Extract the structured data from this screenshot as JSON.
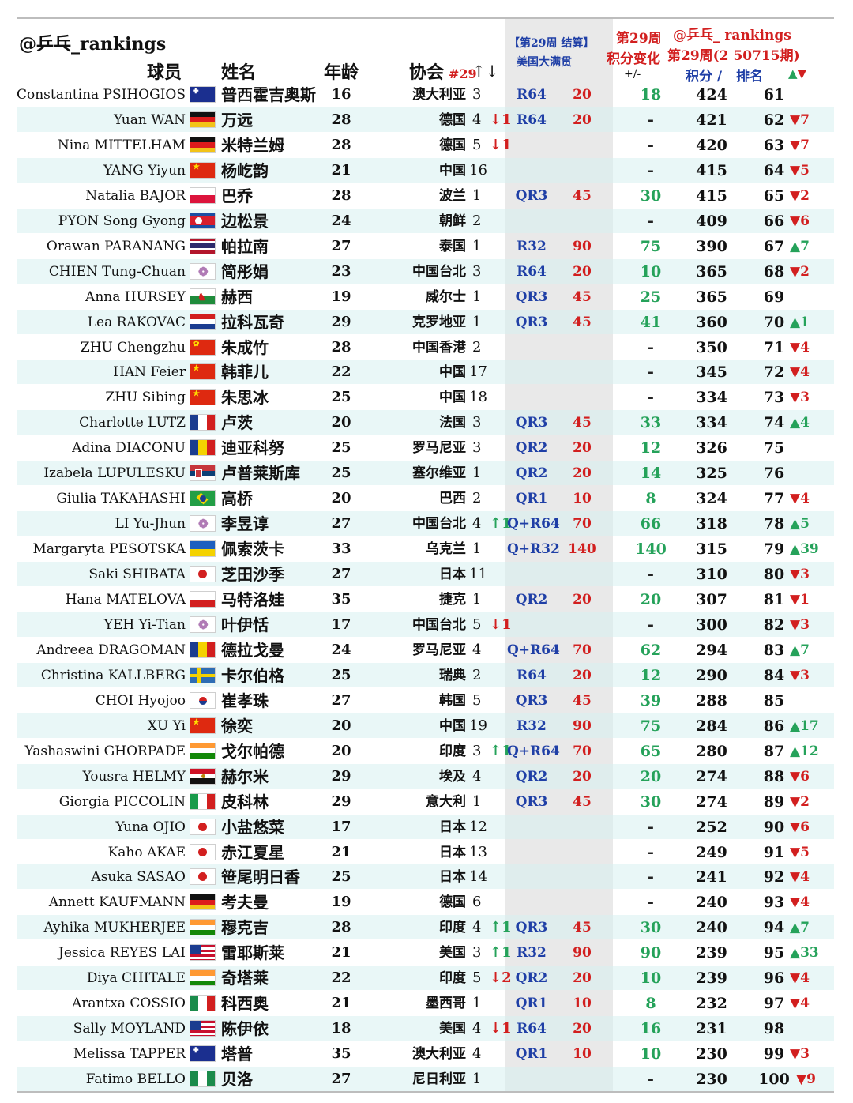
{
  "header": {
    "handle": "@乒乓_rankings",
    "col_player": "球员",
    "col_name": "姓名",
    "col_age": "年龄",
    "col_assoc": "协会",
    "col_assoc_sub": "#29",
    "col_assoc_sort": "↑↓",
    "event_line1": "【第29周 结算】",
    "event_line2": "美国大满贯",
    "week_change_line1": "第29周",
    "week_change_line2": "积分变化",
    "week_change_line3": "+/-",
    "handle2": "@乒乓_ rankings",
    "week_label": "第29周(2 50715期)",
    "col_points": "积分 /",
    "col_rank": "排名",
    "col_move": "▲▼"
  },
  "rows": [
    {
      "en": "Constantina PSIHOGIOS",
      "flag": "AUS",
      "cn": "普西霍吉奥斯",
      "age": "16",
      "assoc": "澳大利亚",
      "nrank": "3",
      "narrow": "",
      "nmove": "",
      "round": "R64",
      "rpts": "20",
      "chg": "18",
      "pts": "424",
      "rank": "61",
      "mv": ""
    },
    {
      "en": "Yuan WAN",
      "flag": "GER",
      "cn": "万远",
      "age": "28",
      "assoc": "德国",
      "nrank": "4",
      "narrow": "↓",
      "nmove": "1",
      "round": "R64",
      "rpts": "20",
      "chg": "-",
      "pts": "421",
      "rank": "62",
      "mv": "▼7"
    },
    {
      "en": "Nina MITTELHAM",
      "flag": "GER",
      "cn": "米特兰姆",
      "age": "28",
      "assoc": "德国",
      "nrank": "5",
      "narrow": "↓",
      "nmove": "1",
      "round": "",
      "rpts": "",
      "chg": "-",
      "pts": "420",
      "rank": "63",
      "mv": "▼7"
    },
    {
      "en": "YANG Yiyun",
      "flag": "CHN",
      "cn": "杨屹韵",
      "age": "21",
      "assoc": "中国",
      "nrank": "16",
      "narrow": "",
      "nmove": "",
      "round": "",
      "rpts": "",
      "chg": "-",
      "pts": "415",
      "rank": "64",
      "mv": "▼5"
    },
    {
      "en": "Natalia BAJOR",
      "flag": "POL",
      "cn": "巴乔",
      "age": "28",
      "assoc": "波兰",
      "nrank": "1",
      "narrow": "",
      "nmove": "",
      "round": "QR3",
      "rpts": "45",
      "chg": "30",
      "pts": "415",
      "rank": "65",
      "mv": "▼2"
    },
    {
      "en": "PYON Song Gyong",
      "flag": "PRK",
      "cn": "边松景",
      "age": "24",
      "assoc": "朝鲜",
      "nrank": "2",
      "narrow": "",
      "nmove": "",
      "round": "",
      "rpts": "",
      "chg": "-",
      "pts": "409",
      "rank": "66",
      "mv": "▼6"
    },
    {
      "en": "Orawan PARANANG",
      "flag": "THA",
      "cn": "帕拉南",
      "age": "27",
      "assoc": "泰国",
      "nrank": "1",
      "narrow": "",
      "nmove": "",
      "round": "R32",
      "rpts": "90",
      "chg": "75",
      "pts": "390",
      "rank": "67",
      "mv": "▲7"
    },
    {
      "en": "CHIEN Tung-Chuan",
      "flag": "TPE",
      "cn": "简彤娟",
      "age": "23",
      "assoc": "中国台北",
      "nrank": "3",
      "narrow": "",
      "nmove": "",
      "round": "R64",
      "rpts": "20",
      "chg": "10",
      "pts": "365",
      "rank": "68",
      "mv": "▼2"
    },
    {
      "en": "Anna HURSEY",
      "flag": "WAL",
      "cn": "赫西",
      "age": "19",
      "assoc": "威尔士",
      "nrank": "1",
      "narrow": "",
      "nmove": "",
      "round": "QR3",
      "rpts": "45",
      "chg": "25",
      "pts": "365",
      "rank": "69",
      "mv": ""
    },
    {
      "en": "Lea RAKOVAC",
      "flag": "CRO",
      "cn": "拉科瓦奇",
      "age": "29",
      "assoc": "克罗地亚",
      "nrank": "1",
      "narrow": "",
      "nmove": "",
      "round": "QR3",
      "rpts": "45",
      "chg": "41",
      "pts": "360",
      "rank": "70",
      "mv": "▲1"
    },
    {
      "en": "ZHU Chengzhu",
      "flag": "HKG",
      "cn": "朱成竹",
      "age": "28",
      "assoc": "中国香港",
      "nrank": "2",
      "narrow": "",
      "nmove": "",
      "round": "",
      "rpts": "",
      "chg": "-",
      "pts": "350",
      "rank": "71",
      "mv": "▼4"
    },
    {
      "en": "HAN Feier",
      "flag": "CHN",
      "cn": "韩菲儿",
      "age": "22",
      "assoc": "中国",
      "nrank": "17",
      "narrow": "",
      "nmove": "",
      "round": "",
      "rpts": "",
      "chg": "-",
      "pts": "345",
      "rank": "72",
      "mv": "▼4"
    },
    {
      "en": "ZHU Sibing",
      "flag": "CHN",
      "cn": "朱思冰",
      "age": "25",
      "assoc": "中国",
      "nrank": "18",
      "narrow": "",
      "nmove": "",
      "round": "",
      "rpts": "",
      "chg": "-",
      "pts": "334",
      "rank": "73",
      "mv": "▼3"
    },
    {
      "en": "Charlotte LUTZ",
      "flag": "FRA",
      "cn": "卢茨",
      "age": "20",
      "assoc": "法国",
      "nrank": "3",
      "narrow": "",
      "nmove": "",
      "round": "QR3",
      "rpts": "45",
      "chg": "33",
      "pts": "334",
      "rank": "74",
      "mv": "▲4"
    },
    {
      "en": "Adina DIACONU",
      "flag": "ROU",
      "cn": "迪亚科努",
      "age": "25",
      "assoc": "罗马尼亚",
      "nrank": "3",
      "narrow": "",
      "nmove": "",
      "round": "QR2",
      "rpts": "20",
      "chg": "12",
      "pts": "326",
      "rank": "75",
      "mv": ""
    },
    {
      "en": "Izabela LUPULESKU",
      "flag": "SRB",
      "cn": "卢普莱斯库",
      "age": "25",
      "assoc": "塞尔维亚",
      "nrank": "1",
      "narrow": "",
      "nmove": "",
      "round": "QR2",
      "rpts": "20",
      "chg": "14",
      "pts": "325",
      "rank": "76",
      "mv": ""
    },
    {
      "en": "Giulia TAKAHASHI",
      "flag": "BRA",
      "cn": "高桥",
      "age": "20",
      "assoc": "巴西",
      "nrank": "2",
      "narrow": "",
      "nmove": "",
      "round": "QR1",
      "rpts": "10",
      "chg": "8",
      "pts": "324",
      "rank": "77",
      "mv": "▼4"
    },
    {
      "en": "LI Yu-Jhun",
      "flag": "TPE",
      "cn": "李昱谆",
      "age": "27",
      "assoc": "中国台北",
      "nrank": "4",
      "narrow": "↑",
      "nmove": "1",
      "round": "Q+R64",
      "rpts": "70",
      "chg": "66",
      "pts": "318",
      "rank": "78",
      "mv": "▲5"
    },
    {
      "en": "Margaryta PESOTSKA",
      "flag": "UKR",
      "cn": "佩索茨卡",
      "age": "33",
      "assoc": "乌克兰",
      "nrank": "1",
      "narrow": "",
      "nmove": "",
      "round": "Q+R32",
      "rpts": "140",
      "chg": "140",
      "pts": "315",
      "rank": "79",
      "mv": "▲39"
    },
    {
      "en": "Saki SHIBATA",
      "flag": "JPN",
      "cn": "芝田沙季",
      "age": "27",
      "assoc": "日本",
      "nrank": "11",
      "narrow": "",
      "nmove": "",
      "round": "",
      "rpts": "",
      "chg": "-",
      "pts": "310",
      "rank": "80",
      "mv": "▼3"
    },
    {
      "en": "Hana MATELOVA",
      "flag": "CZE",
      "cn": "马特洛娃",
      "age": "35",
      "assoc": "捷克",
      "nrank": "1",
      "narrow": "",
      "nmove": "",
      "round": "QR2",
      "rpts": "20",
      "chg": "20",
      "pts": "307",
      "rank": "81",
      "mv": "▼1"
    },
    {
      "en": "YEH Yi-Tian",
      "flag": "TPE",
      "cn": "叶伊恬",
      "age": "17",
      "assoc": "中国台北",
      "nrank": "5",
      "narrow": "↓",
      "nmove": "1",
      "round": "",
      "rpts": "",
      "chg": "-",
      "pts": "300",
      "rank": "82",
      "mv": "▼3"
    },
    {
      "en": "Andreea DRAGOMAN",
      "flag": "ROU",
      "cn": "德拉戈曼",
      "age": "24",
      "assoc": "罗马尼亚",
      "nrank": "4",
      "narrow": "",
      "nmove": "",
      "round": "Q+R64",
      "rpts": "70",
      "chg": "62",
      "pts": "294",
      "rank": "83",
      "mv": "▲7"
    },
    {
      "en": "Christina KALLBERG",
      "flag": "SWE",
      "cn": "卡尔伯格",
      "age": "25",
      "assoc": "瑞典",
      "nrank": "2",
      "narrow": "",
      "nmove": "",
      "round": "R64",
      "rpts": "20",
      "chg": "12",
      "pts": "290",
      "rank": "84",
      "mv": "▼3"
    },
    {
      "en": "CHOI Hyojoo",
      "flag": "KOR",
      "cn": "崔孝珠",
      "age": "27",
      "assoc": "韩国",
      "nrank": "5",
      "narrow": "",
      "nmove": "",
      "round": "QR3",
      "rpts": "45",
      "chg": "39",
      "pts": "288",
      "rank": "85",
      "mv": ""
    },
    {
      "en": "XU Yi",
      "flag": "CHN",
      "cn": "徐奕",
      "age": "20",
      "assoc": "中国",
      "nrank": "19",
      "narrow": "",
      "nmove": "",
      "round": "R32",
      "rpts": "90",
      "chg": "75",
      "pts": "284",
      "rank": "86",
      "mv": "▲17"
    },
    {
      "en": "Yashaswini GHORPADE",
      "flag": "IND",
      "cn": "戈尔帕德",
      "age": "20",
      "assoc": "印度",
      "nrank": "3",
      "narrow": "↑",
      "nmove": "1",
      "round": "Q+R64",
      "rpts": "70",
      "chg": "65",
      "pts": "280",
      "rank": "87",
      "mv": "▲12"
    },
    {
      "en": "Yousra HELMY",
      "flag": "EGY",
      "cn": "赫尔米",
      "age": "29",
      "assoc": "埃及",
      "nrank": "4",
      "narrow": "",
      "nmove": "",
      "round": "QR2",
      "rpts": "20",
      "chg": "20",
      "pts": "274",
      "rank": "88",
      "mv": "▼6"
    },
    {
      "en": "Giorgia PICCOLIN",
      "flag": "ITA",
      "cn": "皮科林",
      "age": "29",
      "assoc": "意大利",
      "nrank": "1",
      "narrow": "",
      "nmove": "",
      "round": "QR3",
      "rpts": "45",
      "chg": "30",
      "pts": "274",
      "rank": "89",
      "mv": "▼2"
    },
    {
      "en": "Yuna OJIO",
      "flag": "JPN",
      "cn": "小盐悠菜",
      "age": "17",
      "assoc": "日本",
      "nrank": "12",
      "narrow": "",
      "nmove": "",
      "round": "",
      "rpts": "",
      "chg": "-",
      "pts": "252",
      "rank": "90",
      "mv": "▼6"
    },
    {
      "en": "Kaho AKAE",
      "flag": "JPN",
      "cn": "赤江夏星",
      "age": "21",
      "assoc": "日本",
      "nrank": "13",
      "narrow": "",
      "nmove": "",
      "round": "",
      "rpts": "",
      "chg": "-",
      "pts": "249",
      "rank": "91",
      "mv": "▼5"
    },
    {
      "en": "Asuka SASAO",
      "flag": "JPN",
      "cn": "笹尾明日香",
      "age": "25",
      "assoc": "日本",
      "nrank": "14",
      "narrow": "",
      "nmove": "",
      "round": "",
      "rpts": "",
      "chg": "-",
      "pts": "241",
      "rank": "92",
      "mv": "▼4"
    },
    {
      "en": "Annett KAUFMANN",
      "flag": "GER",
      "cn": "考夫曼",
      "age": "19",
      "assoc": "德国",
      "nrank": "6",
      "narrow": "",
      "nmove": "",
      "round": "",
      "rpts": "",
      "chg": "-",
      "pts": "240",
      "rank": "93",
      "mv": "▼4"
    },
    {
      "en": "Ayhika MUKHERJEE",
      "flag": "IND",
      "cn": "穆克吉",
      "age": "28",
      "assoc": "印度",
      "nrank": "4",
      "narrow": "↑",
      "nmove": "1",
      "round": "QR3",
      "rpts": "45",
      "chg": "30",
      "pts": "240",
      "rank": "94",
      "mv": "▲7"
    },
    {
      "en": "Jessica REYES LAI",
      "flag": "USA",
      "cn": "雷耶斯莱",
      "age": "21",
      "assoc": "美国",
      "nrank": "3",
      "narrow": "↑",
      "nmove": "1",
      "round": "R32",
      "rpts": "90",
      "chg": "90",
      "pts": "239",
      "rank": "95",
      "mv": "▲33"
    },
    {
      "en": "Diya CHITALE",
      "flag": "IND",
      "cn": "奇塔莱",
      "age": "22",
      "assoc": "印度",
      "nrank": "5",
      "narrow": "↓",
      "nmove": "2",
      "round": "QR2",
      "rpts": "20",
      "chg": "10",
      "pts": "239",
      "rank": "96",
      "mv": "▼4"
    },
    {
      "en": "Arantxa COSSIO",
      "flag": "MEX",
      "cn": "科西奥",
      "age": "21",
      "assoc": "墨西哥",
      "nrank": "1",
      "narrow": "",
      "nmove": "",
      "round": "QR1",
      "rpts": "10",
      "chg": "8",
      "pts": "232",
      "rank": "97",
      "mv": "▼4"
    },
    {
      "en": "Sally MOYLAND",
      "flag": "USA",
      "cn": "陈伊依",
      "age": "18",
      "assoc": "美国",
      "nrank": "4",
      "narrow": "↓",
      "nmove": "1",
      "round": "R64",
      "rpts": "20",
      "chg": "16",
      "pts": "231",
      "rank": "98",
      "mv": ""
    },
    {
      "en": "Melissa TAPPER",
      "flag": "AUS",
      "cn": "塔普",
      "age": "35",
      "assoc": "澳大利亚",
      "nrank": "4",
      "narrow": "",
      "nmove": "",
      "round": "QR1",
      "rpts": "10",
      "chg": "10",
      "pts": "230",
      "rank": "99",
      "mv": "▼3"
    },
    {
      "en": "Fatimo BELLO",
      "flag": "NGR",
      "cn": "贝洛",
      "age": "27",
      "assoc": "尼日利亚",
      "nrank": "1",
      "narrow": "",
      "nmove": "",
      "round": "",
      "rpts": "",
      "chg": "-",
      "pts": "230",
      "rank": "100",
      "mv": "▼9"
    }
  ]
}
